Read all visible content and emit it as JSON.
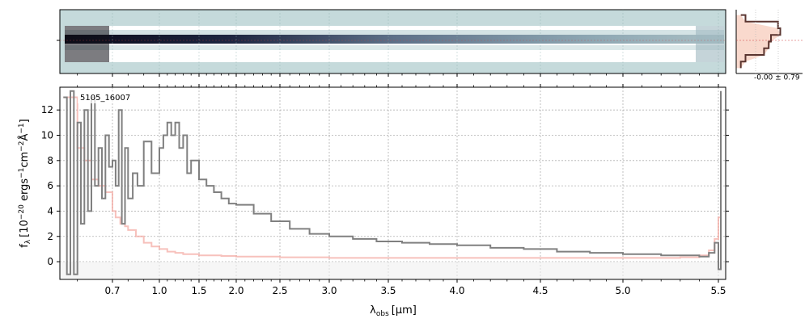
{
  "chart_data": {
    "type": "line",
    "object_label": "5105_16007",
    "xlabel_main": "λ",
    "xlabel_sub": "obs",
    "xlabel_unit": "[μm]",
    "ylabel": "f_λ [10^-20 ergs^-1 cm^-2 Å^-1]",
    "ylabel_parts": {
      "f": "f",
      "lam": "λ",
      "bracket": "[10",
      "exp1": "−20",
      "mid1": " ergs",
      "exp2": "−1",
      "mid2": "cm",
      "exp3": "−2",
      "mid3": "Å",
      "exp4": "−1",
      "end": "]"
    },
    "profile_label": "-0.00 ± 0.79",
    "xlim": [
      0.55,
      5.53
    ],
    "ylim": [
      -1.4,
      13.8
    ],
    "x_ticks": [
      0.7,
      1.0,
      1.5,
      2.0,
      2.5,
      3.0,
      3.5,
      4.0,
      4.5,
      5.0,
      5.5
    ],
    "x_tick_labels": [
      "0.7",
      "1.0",
      "1.5",
      "2.0",
      "2.5",
      "3.0",
      "3.5",
      "4.0",
      "4.5",
      "5.0",
      "5.5"
    ],
    "y_ticks": [
      0,
      2,
      4,
      6,
      8,
      10,
      12
    ],
    "y_tick_labels": [
      "0",
      "2",
      "4",
      "6",
      "8",
      "10",
      "12"
    ],
    "grid": true,
    "series": [
      {
        "color": "#808080",
        "x": [
          0.56,
          0.57,
          0.58,
          0.59,
          0.6,
          0.61,
          0.62,
          0.63,
          0.64,
          0.65,
          0.66,
          0.67,
          0.68,
          0.69,
          0.7,
          0.72,
          0.74,
          0.76,
          0.78,
          0.8,
          0.83,
          0.86,
          0.9,
          0.95,
          1.0,
          1.05,
          1.1,
          1.15,
          1.2,
          1.25,
          1.3,
          1.35,
          1.4,
          1.5,
          1.6,
          1.7,
          1.8,
          1.9,
          2.0,
          2.2,
          2.4,
          2.6,
          2.8,
          3.0,
          3.2,
          3.4,
          3.6,
          3.8,
          4.0,
          4.2,
          4.4,
          4.6,
          4.8,
          5.0,
          5.2,
          5.4,
          5.45,
          5.48,
          5.5,
          5.51
        ],
        "y": [
          13,
          -1,
          13.5,
          -1,
          11,
          3,
          12,
          4,
          13,
          6,
          9,
          5,
          10,
          7.5,
          8,
          6,
          12,
          3,
          9,
          5,
          7,
          6,
          9.5,
          7,
          9,
          10,
          11,
          10,
          11,
          9,
          10,
          7,
          8,
          6.5,
          6,
          5.5,
          5,
          4.6,
          4.5,
          3.8,
          3.2,
          2.6,
          2.2,
          2.0,
          1.8,
          1.6,
          1.5,
          1.4,
          1.3,
          1.1,
          1.0,
          0.8,
          0.7,
          0.6,
          0.5,
          0.4,
          0.7,
          1.5,
          -0.6,
          13.5
        ]
      },
      {
        "color": "#f4a6a0",
        "x": [
          0.56,
          0.6,
          0.62,
          0.64,
          0.66,
          0.68,
          0.7,
          0.72,
          0.75,
          0.78,
          0.8,
          0.85,
          0.9,
          0.95,
          1.0,
          1.1,
          1.2,
          1.3,
          1.5,
          1.8,
          2.0,
          2.5,
          3.0,
          3.5,
          4.0,
          4.5,
          5.0,
          5.3,
          5.4,
          5.45,
          5.48,
          5.5,
          5.51
        ],
        "y": [
          13,
          9,
          8,
          6.5,
          6,
          5.5,
          4,
          3.5,
          3,
          2.8,
          2.5,
          2,
          1.5,
          1.2,
          1.0,
          0.8,
          0.7,
          0.6,
          0.5,
          0.45,
          0.4,
          0.35,
          0.3,
          0.3,
          0.3,
          0.3,
          0.3,
          0.35,
          0.5,
          0.9,
          1.8,
          3.5,
          6
        ]
      }
    ],
    "inset_profile": {
      "y": [
        -1,
        -0.75,
        -0.5,
        -0.25,
        0,
        0.25,
        0.5,
        0.75,
        1
      ],
      "values": [
        0.1,
        0.2,
        0.6,
        0.7,
        0.75,
        0.95,
        0.9,
        0.2,
        0.1
      ]
    }
  }
}
